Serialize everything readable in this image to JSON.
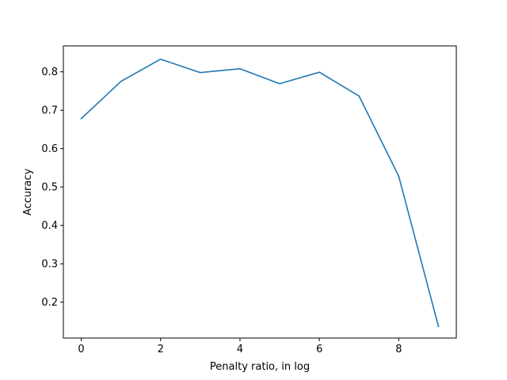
{
  "chart_data": {
    "type": "line",
    "title": "",
    "xlabel": "Penalty ratio, in log",
    "ylabel": "Accuracy",
    "xlim": [
      -0.45,
      9.45
    ],
    "ylim": [
      0.1065,
      0.8675
    ],
    "xticks": [
      0,
      2,
      4,
      6,
      8
    ],
    "xtick_labels": [
      "0",
      "2",
      "4",
      "6",
      "8"
    ],
    "yticks": [
      0.2,
      0.3,
      0.4,
      0.5,
      0.6,
      0.7,
      0.8
    ],
    "ytick_labels": [
      "0.2",
      "0.3",
      "0.4",
      "0.5",
      "0.6",
      "0.7",
      "0.8"
    ],
    "grid": false,
    "legend": "none",
    "series": [
      {
        "color": "#1f77b4",
        "x": [
          0,
          1,
          2,
          3,
          4,
          5,
          6,
          7,
          8,
          9
        ],
        "y": [
          0.678,
          0.775,
          0.833,
          0.798,
          0.808,
          0.769,
          0.799,
          0.737,
          0.528,
          0.137
        ]
      }
    ]
  }
}
